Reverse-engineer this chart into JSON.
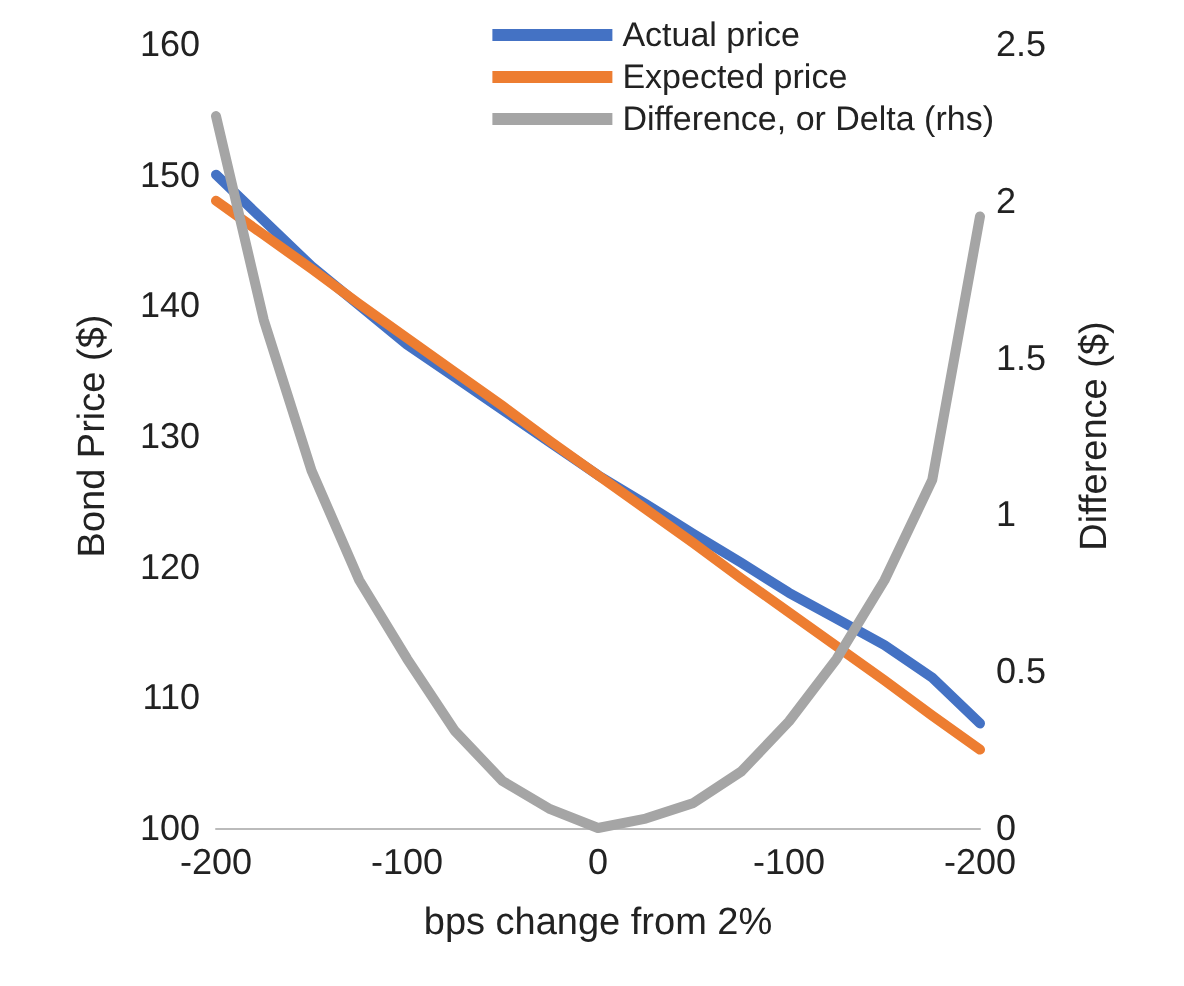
{
  "chart_data": {
    "type": "line",
    "xlabel": "bps change from 2%",
    "ylabel": "Bond Price ($)",
    "y2label": "Difference ($)",
    "categories": [
      "-200",
      null,
      null,
      null,
      "-100",
      null,
      null,
      null,
      "0",
      null,
      null,
      null,
      "-100",
      null,
      null,
      null,
      "-200"
    ],
    "series": [
      {
        "name": "Actual price",
        "color": "#4472c4",
        "values": [
          150,
          146.5,
          143,
          140,
          137,
          134.5,
          132,
          129.5,
          127,
          124.8,
          122.5,
          120.3,
          118,
          116,
          114,
          111.5,
          108
        ]
      },
      {
        "name": "Expected price",
        "color": "#ed7d31",
        "values": [
          148,
          145.4,
          142.8,
          140.1,
          137.5,
          134.9,
          132.3,
          129.6,
          127,
          124.4,
          121.8,
          119.1,
          116.5,
          113.9,
          111.3,
          108.6,
          106
        ]
      },
      {
        "name": "Difference, or Delta (rhs)",
        "color": "#a5a5a5",
        "axis": "y2",
        "values": [
          2.27,
          1.62,
          1.14,
          0.79,
          0.54,
          0.31,
          0.15,
          0.06,
          0,
          0.03,
          0.08,
          0.18,
          0.34,
          0.54,
          0.79,
          1.11,
          1.95
        ]
      }
    ],
    "ylim": [
      100,
      160
    ],
    "yticks": [
      100,
      110,
      120,
      130,
      140,
      150,
      160
    ],
    "y2lim": [
      0,
      2.5
    ],
    "y2ticks": [
      0,
      0.5,
      1,
      1.5,
      2,
      2.5
    ],
    "grid": false,
    "legend": "top right",
    "marker": "none",
    "line_style": "solid"
  }
}
